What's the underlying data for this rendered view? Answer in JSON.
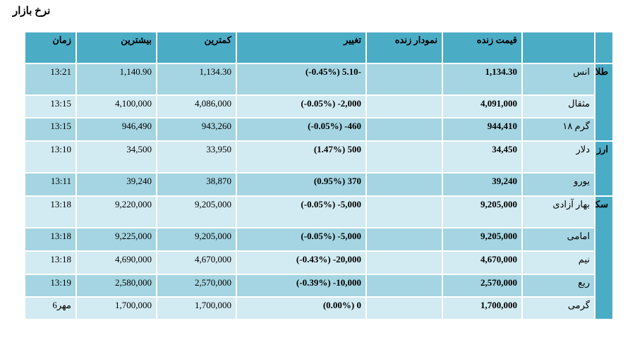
{
  "title": "نرخ بازار",
  "table": {
    "header": {
      "price": "قیمت زنده",
      "chart": "نمودار زنده",
      "change": "تغییر",
      "low": "کمترین",
      "high": "بیشترین",
      "time": "زمان"
    },
    "groups": [
      {
        "label": "طلا",
        "rows": [
          {
            "name": "انس",
            "price": "1,134.30",
            "change": "(-0.45%) 5.10-",
            "low": "1,134.30",
            "high": "1,140.90",
            "time": "13:21"
          },
          {
            "name": "مثقال",
            "price": "4,091,000",
            "change": "(-0.05%) -2,000",
            "low": "4,086,000",
            "high": "4,100,000",
            "time": "13:15"
          },
          {
            "name": "گرم ۱۸",
            "price": "944,410",
            "change": "(-0.05%) -460",
            "low": "943,260",
            "high": "946,490",
            "time": "13:15"
          }
        ]
      },
      {
        "label": "ارز",
        "rows": [
          {
            "name": "دلار",
            "price": "34,450",
            "change": "(1.47%) 500",
            "low": "33,950",
            "high": "34,500",
            "time": "13:10"
          },
          {
            "name": "یورو",
            "price": "39,240",
            "change": "(0.95%) 370",
            "low": "38,870",
            "high": "39,240",
            "time": "13:11"
          }
        ]
      },
      {
        "label": "سکه",
        "rows": [
          {
            "name": "بهار آزادی",
            "price": "9,205,000",
            "change": "(-0.05%) -5,000",
            "low": "9,205,000",
            "high": "9,220,000",
            "time": "13:18"
          },
          {
            "name": "امامی",
            "price": "9,205,000",
            "change": "(-0.05%) -5,000",
            "low": "9,205,000",
            "high": "9,225,000",
            "time": "13:18"
          },
          {
            "name": "نیم",
            "price": "4,670,000",
            "change": "(-0.43%) -20,000",
            "low": "4,670,000",
            "high": "4,690,000",
            "time": "13:18"
          },
          {
            "name": "ربع",
            "price": "2,570,000",
            "change": "(-0.39%) -10,000",
            "low": "2,570,000",
            "high": "2,580,000",
            "time": "13:19"
          },
          {
            "name": "گرمی",
            "price": "1,700,000",
            "change": "(0.00%) 0",
            "low": "1,700,000",
            "high": "1,700,000",
            "time": "6مهر"
          }
        ]
      }
    ]
  }
}
